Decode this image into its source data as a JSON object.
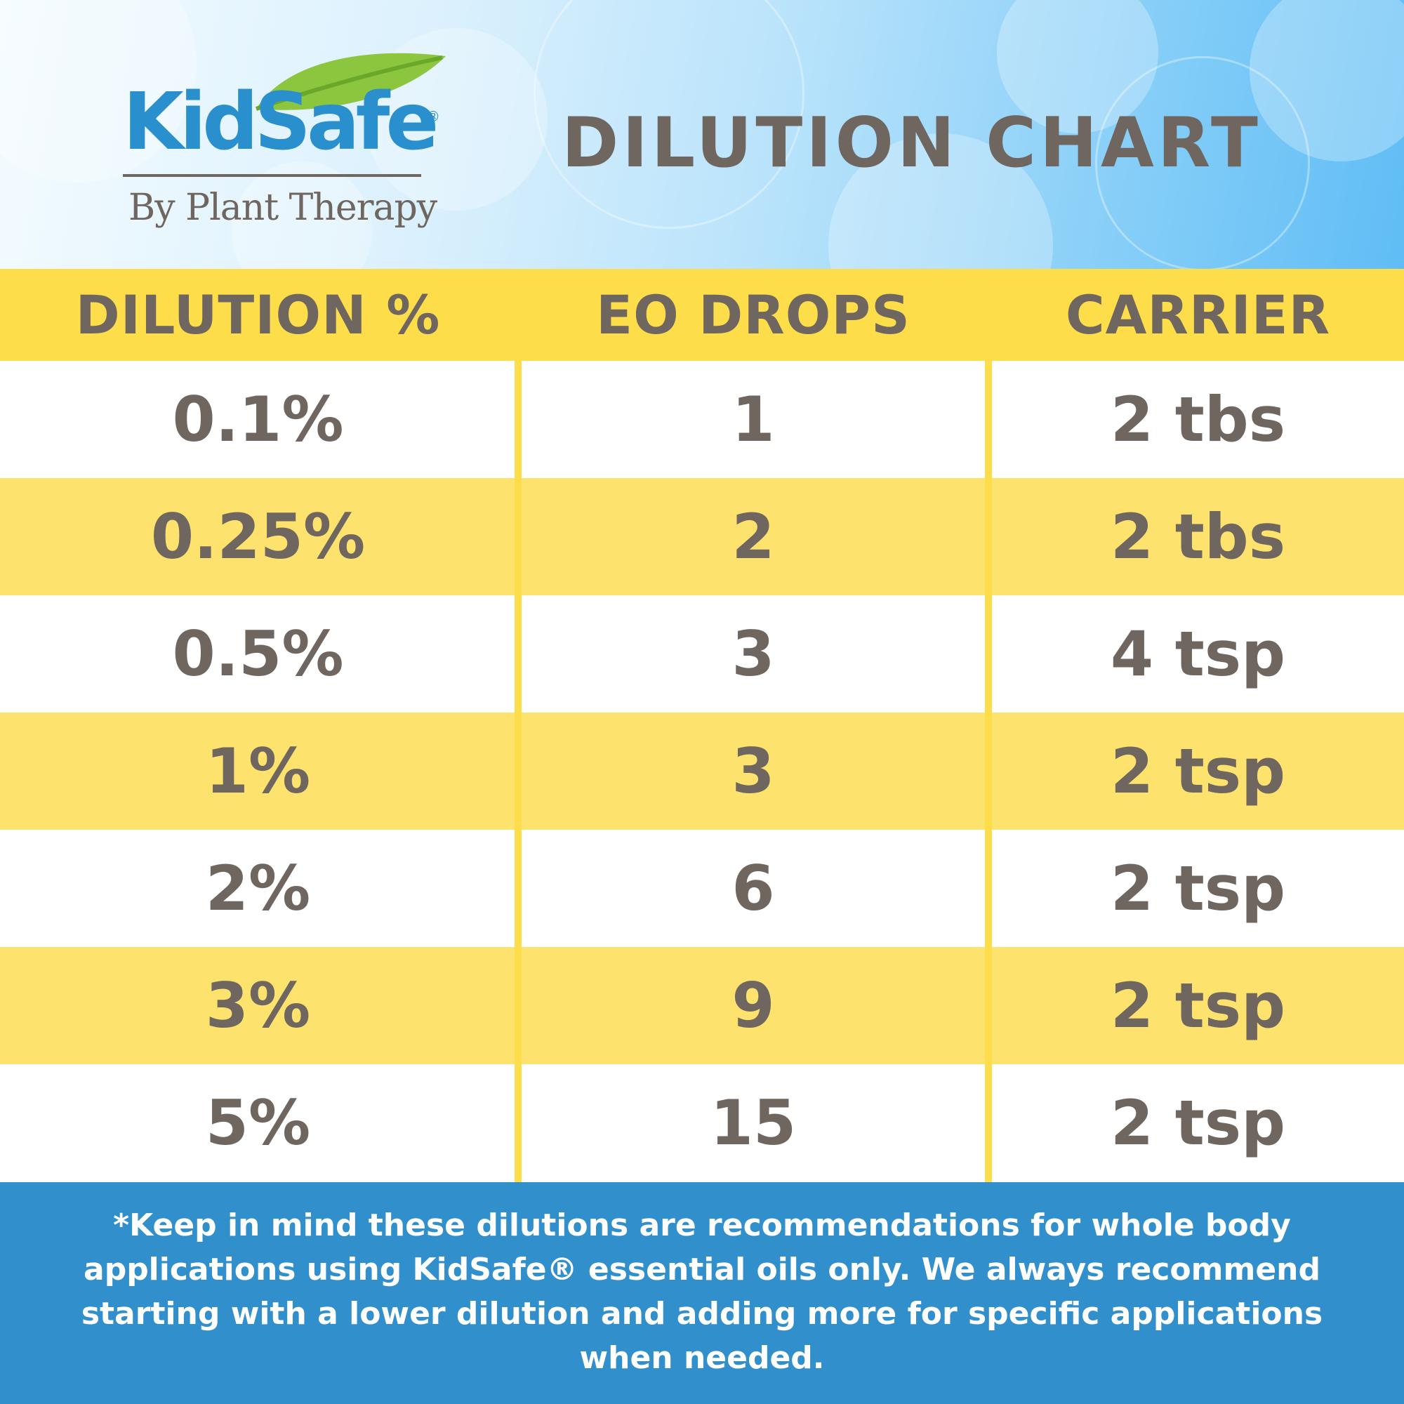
{
  "header": {
    "logo": {
      "wordmark": "KidSafe",
      "registered_mark": "®",
      "tagline": "By Plant Therapy"
    },
    "title": "DILUTION CHART"
  },
  "table": {
    "columns": [
      "DILUTION %",
      "EO DROPS",
      "CARRIER"
    ],
    "rows": [
      {
        "dilution": "0.1%",
        "eo_drops": "1",
        "carrier": "2 tbs"
      },
      {
        "dilution": "0.25%",
        "eo_drops": "2",
        "carrier": "2 tbs"
      },
      {
        "dilution": "0.5%",
        "eo_drops": "3",
        "carrier": "4 tsp"
      },
      {
        "dilution": "1%",
        "eo_drops": "3",
        "carrier": "2 tsp"
      },
      {
        "dilution": "2%",
        "eo_drops": "6",
        "carrier": "2 tsp"
      },
      {
        "dilution": "3%",
        "eo_drops": "9",
        "carrier": "2 tsp"
      },
      {
        "dilution": "5%",
        "eo_drops": "15",
        "carrier": "2 tsp"
      }
    ]
  },
  "footer": {
    "note": "*Keep in mind these dilutions are recommendations for whole body applications using KidSafe® essential oils only. We always recommend starting with a lower dilution and adding more for specific applications when needed."
  },
  "colors": {
    "text_gray": "#6f6660",
    "brand_blue": "#2a8fcd",
    "leaf_green": "#8cc63f",
    "header_yellow": "#fddd4a",
    "row_yellow": "#fde36e",
    "footer_blue": "#318fcc"
  },
  "icons": {
    "logo_leaf": "leaf-icon"
  }
}
